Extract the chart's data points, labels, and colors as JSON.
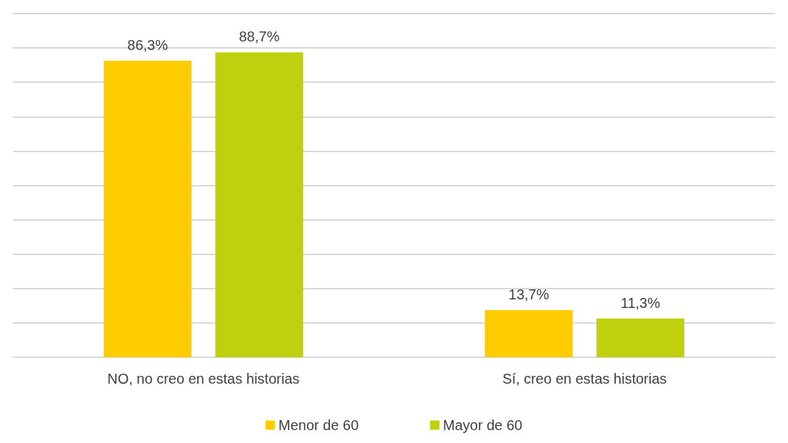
{
  "chart_data": {
    "type": "bar",
    "categories": [
      "NO, no creo en estas historias",
      "Sí, creo en estas historias"
    ],
    "series": [
      {
        "name": "Menor de 60",
        "color": "#ffcc00",
        "values": [
          86.3,
          13.7
        ],
        "value_labels": [
          "86,3%",
          "13,7%"
        ]
      },
      {
        "name": "Mayor de 60",
        "color": "#bed00e",
        "values": [
          88.7,
          11.3
        ],
        "value_labels": [
          "88,7%",
          "11,3%"
        ]
      }
    ],
    "ylim": [
      0,
      100
    ],
    "yticks": [
      {
        "value": 0,
        "label": null
      },
      {
        "value": 10,
        "label": null
      },
      {
        "value": 20,
        "label": null
      },
      {
        "value": 30,
        "label": null
      },
      {
        "value": 40,
        "label": null
      },
      {
        "value": 50,
        "label": null
      },
      {
        "value": 60,
        "label": null
      },
      {
        "value": 70,
        "label": null
      },
      {
        "value": 80,
        "label": null
      },
      {
        "value": 90,
        "label": null
      },
      {
        "value": 100,
        "label": null
      }
    ],
    "tick_labels": "x",
    "grid": "y",
    "legend": "bottom"
  }
}
